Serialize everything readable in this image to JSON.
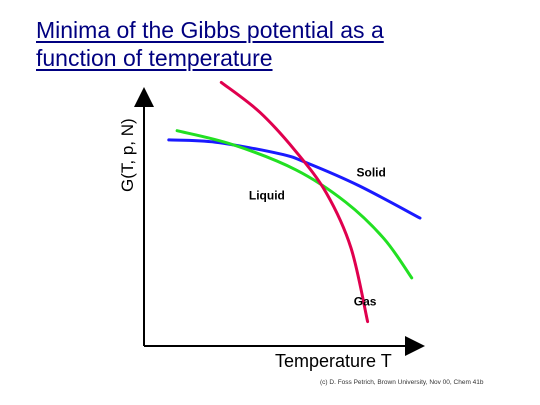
{
  "slide": {
    "title_line1": "Minima of the Gibbs potential as a",
    "title_line2": "function of temperature",
    "credit": "(c) D. Foss Petrich, Brown University, Nov 00, Chem 41b"
  },
  "chart_data": {
    "type": "line",
    "title": "",
    "xlabel": "Temperature T",
    "ylabel": "G(T, p, N)",
    "ticks": false,
    "grid": false,
    "xlim": [
      0,
      100
    ],
    "ylim": [
      0,
      100
    ],
    "series": [
      {
        "name": "Solid",
        "color": "#1a1aff",
        "points": [
          [
            9,
            87
          ],
          [
            26,
            86
          ],
          [
            49,
            81
          ],
          [
            59,
            77
          ],
          [
            78,
            67
          ],
          [
            100,
            53
          ]
        ],
        "label_at": [
          77,
          71
        ]
      },
      {
        "name": "Liquid",
        "color": "#22e022",
        "points": [
          [
            12,
            91
          ],
          [
            32,
            85
          ],
          [
            55,
            74
          ],
          [
            73,
            60
          ],
          [
            87,
            44
          ],
          [
            97,
            27
          ]
        ],
        "label_at": [
          38,
          61
        ]
      },
      {
        "name": "Gas",
        "color": "#e0004e",
        "points": [
          [
            28,
            112
          ],
          [
            42,
            99
          ],
          [
            55,
            82
          ],
          [
            66,
            64
          ],
          [
            75,
            40
          ],
          [
            81,
            8
          ]
        ],
        "label_at": [
          76,
          15
        ]
      }
    ]
  }
}
